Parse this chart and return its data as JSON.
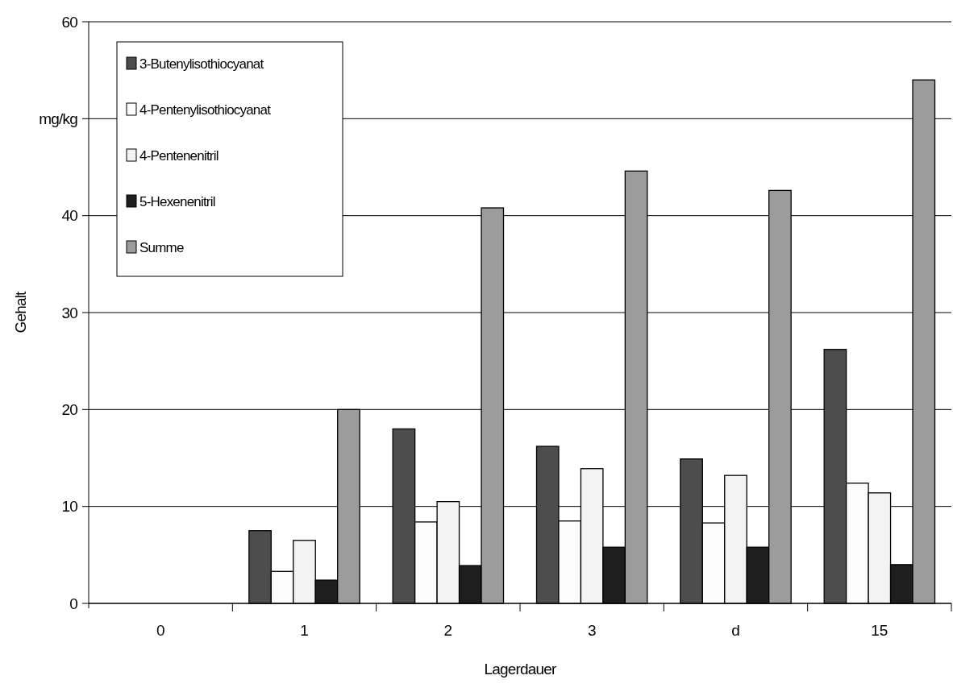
{
  "chart_data": {
    "type": "bar",
    "xlabel": "Lagerdauer",
    "ylabel": "Gehalt",
    "categories": [
      "0",
      "1",
      "2",
      "3",
      "d",
      "15"
    ],
    "series": [
      {
        "name": "3-Butenylisothiocyanat",
        "color": "#4d4d4d",
        "values": [
          null,
          7.5,
          18.0,
          16.2,
          14.9,
          26.2
        ]
      },
      {
        "name": "4-Pentenylisothiocyanat",
        "color": "#fcfcfc",
        "values": [
          null,
          3.3,
          8.4,
          8.5,
          8.3,
          12.4
        ]
      },
      {
        "name": "4-Pentenenitril",
        "color": "#f3f3f3",
        "values": [
          null,
          6.5,
          10.5,
          13.9,
          13.2,
          11.4
        ]
      },
      {
        "name": "5-Hexenenitril",
        "color": "#1e1e1e",
        "values": [
          null,
          2.4,
          3.9,
          5.8,
          5.8,
          4.0
        ]
      },
      {
        "name": "Summe",
        "color": "#9c9c9c",
        "values": [
          null,
          20.0,
          40.8,
          44.6,
          42.6,
          54.0
        ]
      }
    ],
    "ylim": [
      0,
      60
    ],
    "yticks": [
      0,
      10,
      20,
      30,
      40,
      {
        "value": 50,
        "label": "mg/kg"
      },
      60
    ],
    "grid": "y",
    "legend": "top left"
  }
}
